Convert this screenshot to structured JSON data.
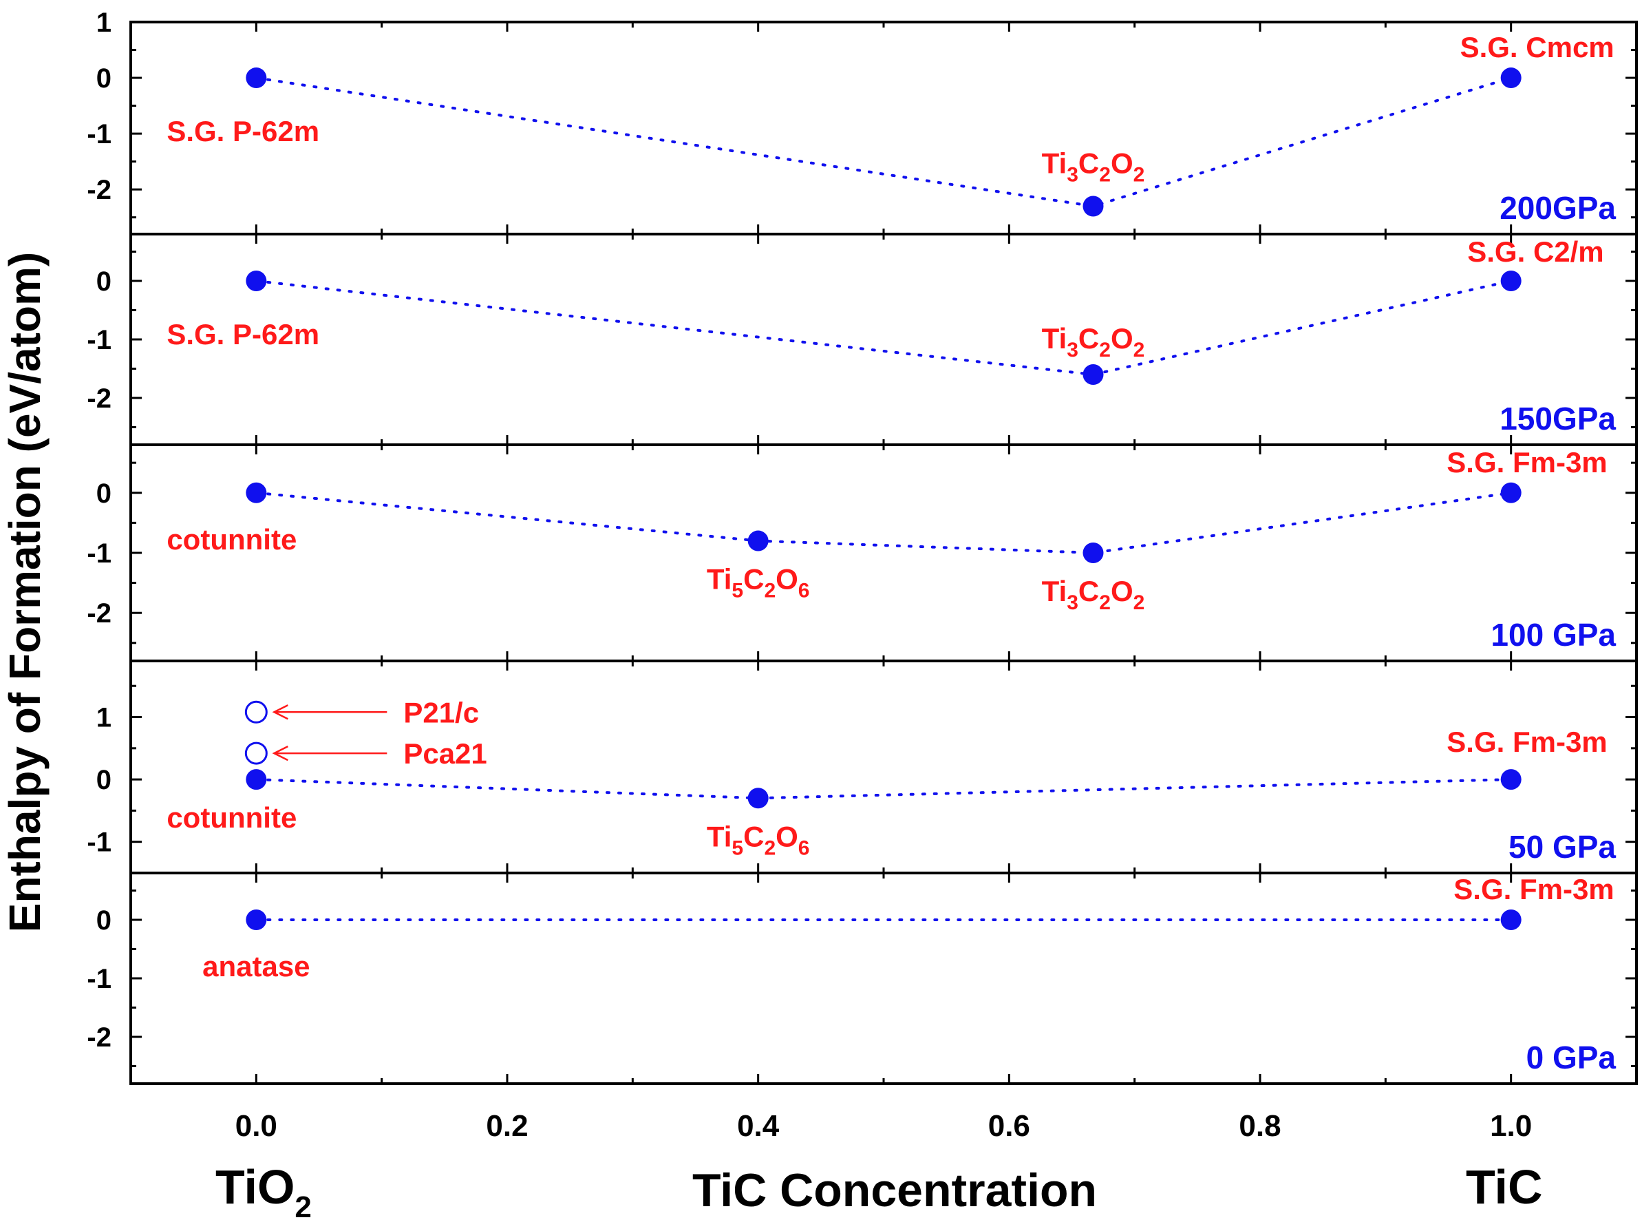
{
  "chart_data": {
    "type": "scatter",
    "xlabel": "TiC Concentration",
    "ylabel": "Enthalpy of Formation   (eV/atom)",
    "xlim": [
      -0.1,
      1.1
    ],
    "xticks": [
      "0.0",
      "0.2",
      "0.4",
      "0.6",
      "0.8",
      "1.0"
    ],
    "x_end_labels": {
      "left": {
        "base": "TiO",
        "sub": "2"
      },
      "right": {
        "base": "TiC",
        "sub": ""
      }
    },
    "colors": {
      "points": "#1010ee",
      "labels": "#ff1a1a",
      "pressure": "#1010ee",
      "axes": "#000000"
    },
    "panels": [
      {
        "pressure": "200GPa",
        "ylim": [
          -2.8,
          1.0
        ],
        "yticks": [
          "1",
          "0",
          "-1",
          "-2"
        ],
        "points": [
          {
            "x": 0.0,
            "y": 0.0,
            "label": [
              {
                "t": "S.G. P-62m"
              }
            ]
          },
          {
            "x": 0.667,
            "y": -2.3,
            "label": [
              {
                "t": "Ti"
              },
              {
                "t": "3",
                "sub": true
              },
              {
                "t": "C"
              },
              {
                "t": "2",
                "sub": true
              },
              {
                "t": "O"
              },
              {
                "t": "2",
                "sub": true
              }
            ]
          },
          {
            "x": 1.0,
            "y": 0.0,
            "label": [
              {
                "t": "S.G. Cmcm"
              }
            ]
          }
        ]
      },
      {
        "pressure": "150GPa",
        "ylim": [
          -2.8,
          0.8
        ],
        "yticks": [
          "0",
          "-1",
          "-2"
        ],
        "points": [
          {
            "x": 0.0,
            "y": 0.0,
            "label": [
              {
                "t": "S.G. P-62m"
              }
            ]
          },
          {
            "x": 0.667,
            "y": -1.6,
            "label": [
              {
                "t": "Ti"
              },
              {
                "t": "3",
                "sub": true
              },
              {
                "t": "C"
              },
              {
                "t": "2",
                "sub": true
              },
              {
                "t": "O"
              },
              {
                "t": "2",
                "sub": true
              }
            ]
          },
          {
            "x": 1.0,
            "y": 0.0,
            "label": [
              {
                "t": "S.G. C2/m"
              }
            ]
          }
        ]
      },
      {
        "pressure": "100 GPa",
        "ylim": [
          -2.8,
          0.8
        ],
        "yticks": [
          "0",
          "-1",
          "-2"
        ],
        "points": [
          {
            "x": 0.0,
            "y": 0.0,
            "label": [
              {
                "t": "cotunnite"
              }
            ]
          },
          {
            "x": 0.4,
            "y": -0.8,
            "label": [
              {
                "t": "Ti"
              },
              {
                "t": "5",
                "sub": true
              },
              {
                "t": "C"
              },
              {
                "t": "2",
                "sub": true
              },
              {
                "t": "O"
              },
              {
                "t": "6",
                "sub": true
              }
            ]
          },
          {
            "x": 0.667,
            "y": -1.0,
            "label": [
              {
                "t": "Ti"
              },
              {
                "t": "3",
                "sub": true
              },
              {
                "t": "C"
              },
              {
                "t": "2",
                "sub": true
              },
              {
                "t": "O"
              },
              {
                "t": "2",
                "sub": true
              }
            ]
          },
          {
            "x": 1.0,
            "y": 0.0,
            "label": [
              {
                "t": "S.G. Fm-3m"
              }
            ]
          }
        ]
      },
      {
        "pressure": "50 GPa",
        "ylim": [
          -1.5,
          1.9
        ],
        "yticks": [
          "1",
          "0",
          "-1"
        ],
        "points": [
          {
            "x": 0.0,
            "y": 0.0,
            "label": [
              {
                "t": "cotunnite"
              }
            ]
          },
          {
            "x": 0.4,
            "y": -0.3,
            "label": [
              {
                "t": "Ti"
              },
              {
                "t": "5",
                "sub": true
              },
              {
                "t": "C"
              },
              {
                "t": "2",
                "sub": true
              },
              {
                "t": "O"
              },
              {
                "t": "6",
                "sub": true
              }
            ]
          },
          {
            "x": 1.0,
            "y": 0.0,
            "label": [
              {
                "t": "S.G. Fm-3m"
              }
            ]
          }
        ],
        "open_points": [
          {
            "x": 0.0,
            "y": 1.08,
            "label": "P21/c"
          },
          {
            "x": 0.0,
            "y": 0.42,
            "label": "Pca21"
          }
        ]
      },
      {
        "pressure": "0 GPa",
        "ylim": [
          -2.8,
          0.8
        ],
        "yticks": [
          "0",
          "-1",
          "-2"
        ],
        "points": [
          {
            "x": 0.0,
            "y": 0.0,
            "label": [
              {
                "t": "anatase"
              }
            ]
          },
          {
            "x": 1.0,
            "y": 0.0,
            "label": [
              {
                "t": "S.G. Fm-3m"
              }
            ]
          }
        ]
      }
    ]
  }
}
